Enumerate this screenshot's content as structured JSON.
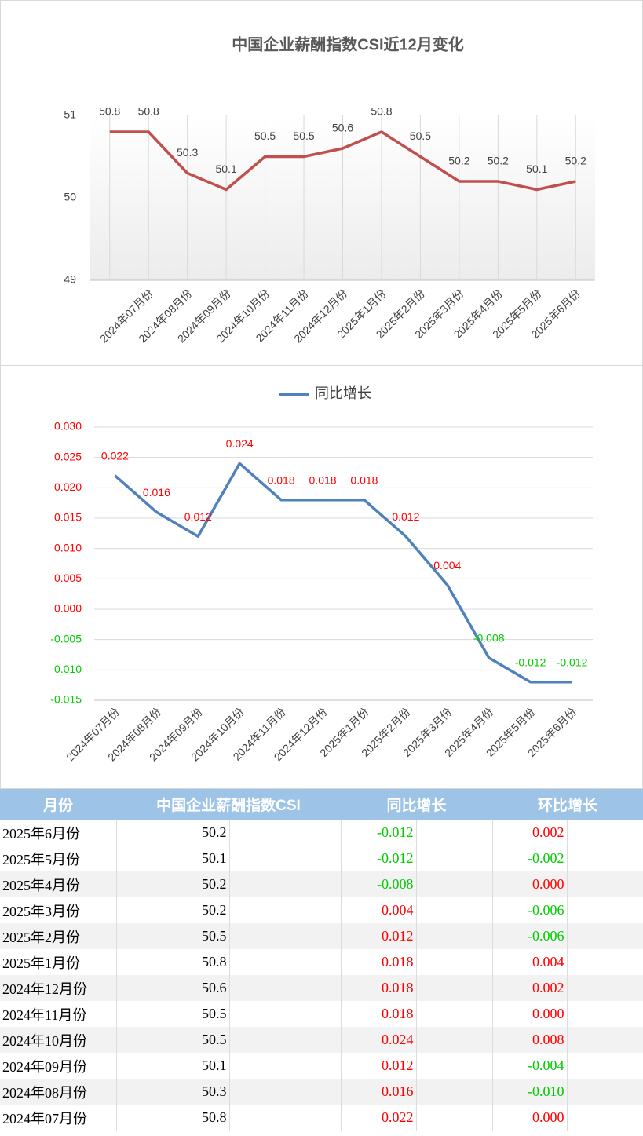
{
  "chart_data": [
    {
      "type": "line",
      "title": "中国企业薪酬指数CSI近12月变化",
      "categories": [
        null,
        "2024年07月份",
        "2024年08月份",
        "2024年09月份",
        "2024年10月份",
        "2024年11月份",
        "2024年12月份",
        "2025年1月份",
        "2025年2月份",
        "2025年3月份",
        "2025年4月份",
        "2025年5月份",
        "2025年6月份"
      ],
      "values": [
        50.8,
        50.8,
        50.3,
        50.1,
        50.5,
        50.5,
        50.6,
        50.8,
        50.5,
        50.2,
        50.2,
        50.1,
        50.2
      ],
      "color": "#c0504d",
      "ylim": [
        49,
        51
      ],
      "yticks": [
        49,
        50,
        51
      ],
      "grid": "x"
    },
    {
      "type": "line",
      "legend": "top",
      "categories": [
        "2024年07月份",
        "2024年08月份",
        "2024年09月份",
        "2024年10月份",
        "2024年11月份",
        "2024年12月份",
        "2025年1月份",
        "2025年2月份",
        "2025年3月份",
        "2025年4月份",
        "2025年5月份",
        "2025年6月份"
      ],
      "series": [
        {
          "name": "同比增长",
          "color": "#4f81bd",
          "values": [
            0.022,
            0.016,
            0.012,
            0.024,
            0.018,
            0.018,
            0.018,
            0.012,
            0.004,
            -0.008,
            -0.012,
            -0.012
          ]
        }
      ],
      "ylim": [
        -0.015,
        0.03
      ],
      "yticks": [
        {
          "value": -0.015,
          "label": "-0.015"
        },
        {
          "value": -0.01,
          "label": "-0.010"
        },
        {
          "value": -0.005,
          "label": "-0.005"
        },
        {
          "value": 0,
          "label": "0.000"
        },
        {
          "value": 0.005,
          "label": "0.005"
        },
        {
          "value": 0.01,
          "label": "0.010"
        },
        {
          "value": 0.015,
          "label": "0.015"
        },
        {
          "value": 0.02,
          "label": "0.020"
        },
        {
          "value": 0.025,
          "label": "0.025"
        },
        {
          "value": 0.03,
          "label": "0.030"
        }
      ],
      "grid": "y",
      "label_colors": {
        "positive": "#ff0000",
        "negative": "#00cc00"
      }
    }
  ],
  "table": {
    "header": [
      "月份",
      "中国企业薪酬指数CSI",
      "同比增长",
      "环比增长"
    ],
    "rows": [
      [
        "2025年6月份",
        "50.2",
        "-0.012",
        "0.002"
      ],
      [
        "2025年5月份",
        "50.1",
        "-0.012",
        "-0.002"
      ],
      [
        "2025年4月份",
        "50.2",
        "-0.008",
        "0.000"
      ],
      [
        "2025年3月份",
        "50.2",
        "0.004",
        "-0.006"
      ],
      [
        "2025年2月份",
        "50.5",
        "0.012",
        "-0.006"
      ],
      [
        "2025年1月份",
        "50.8",
        "0.018",
        "0.004"
      ],
      [
        "2024年12月份",
        "50.6",
        "0.018",
        "0.002"
      ],
      [
        "2024年11月份",
        "50.5",
        "0.018",
        "0.000"
      ],
      [
        "2024年10月份",
        "50.5",
        "0.024",
        "0.008"
      ],
      [
        "2024年09月份",
        "50.1",
        "0.012",
        "-0.004"
      ],
      [
        "2024年08月份",
        "50.3",
        "0.016",
        "-0.010"
      ],
      [
        "2024年07月份",
        "50.8",
        "0.022",
        "0.000"
      ]
    ]
  }
}
